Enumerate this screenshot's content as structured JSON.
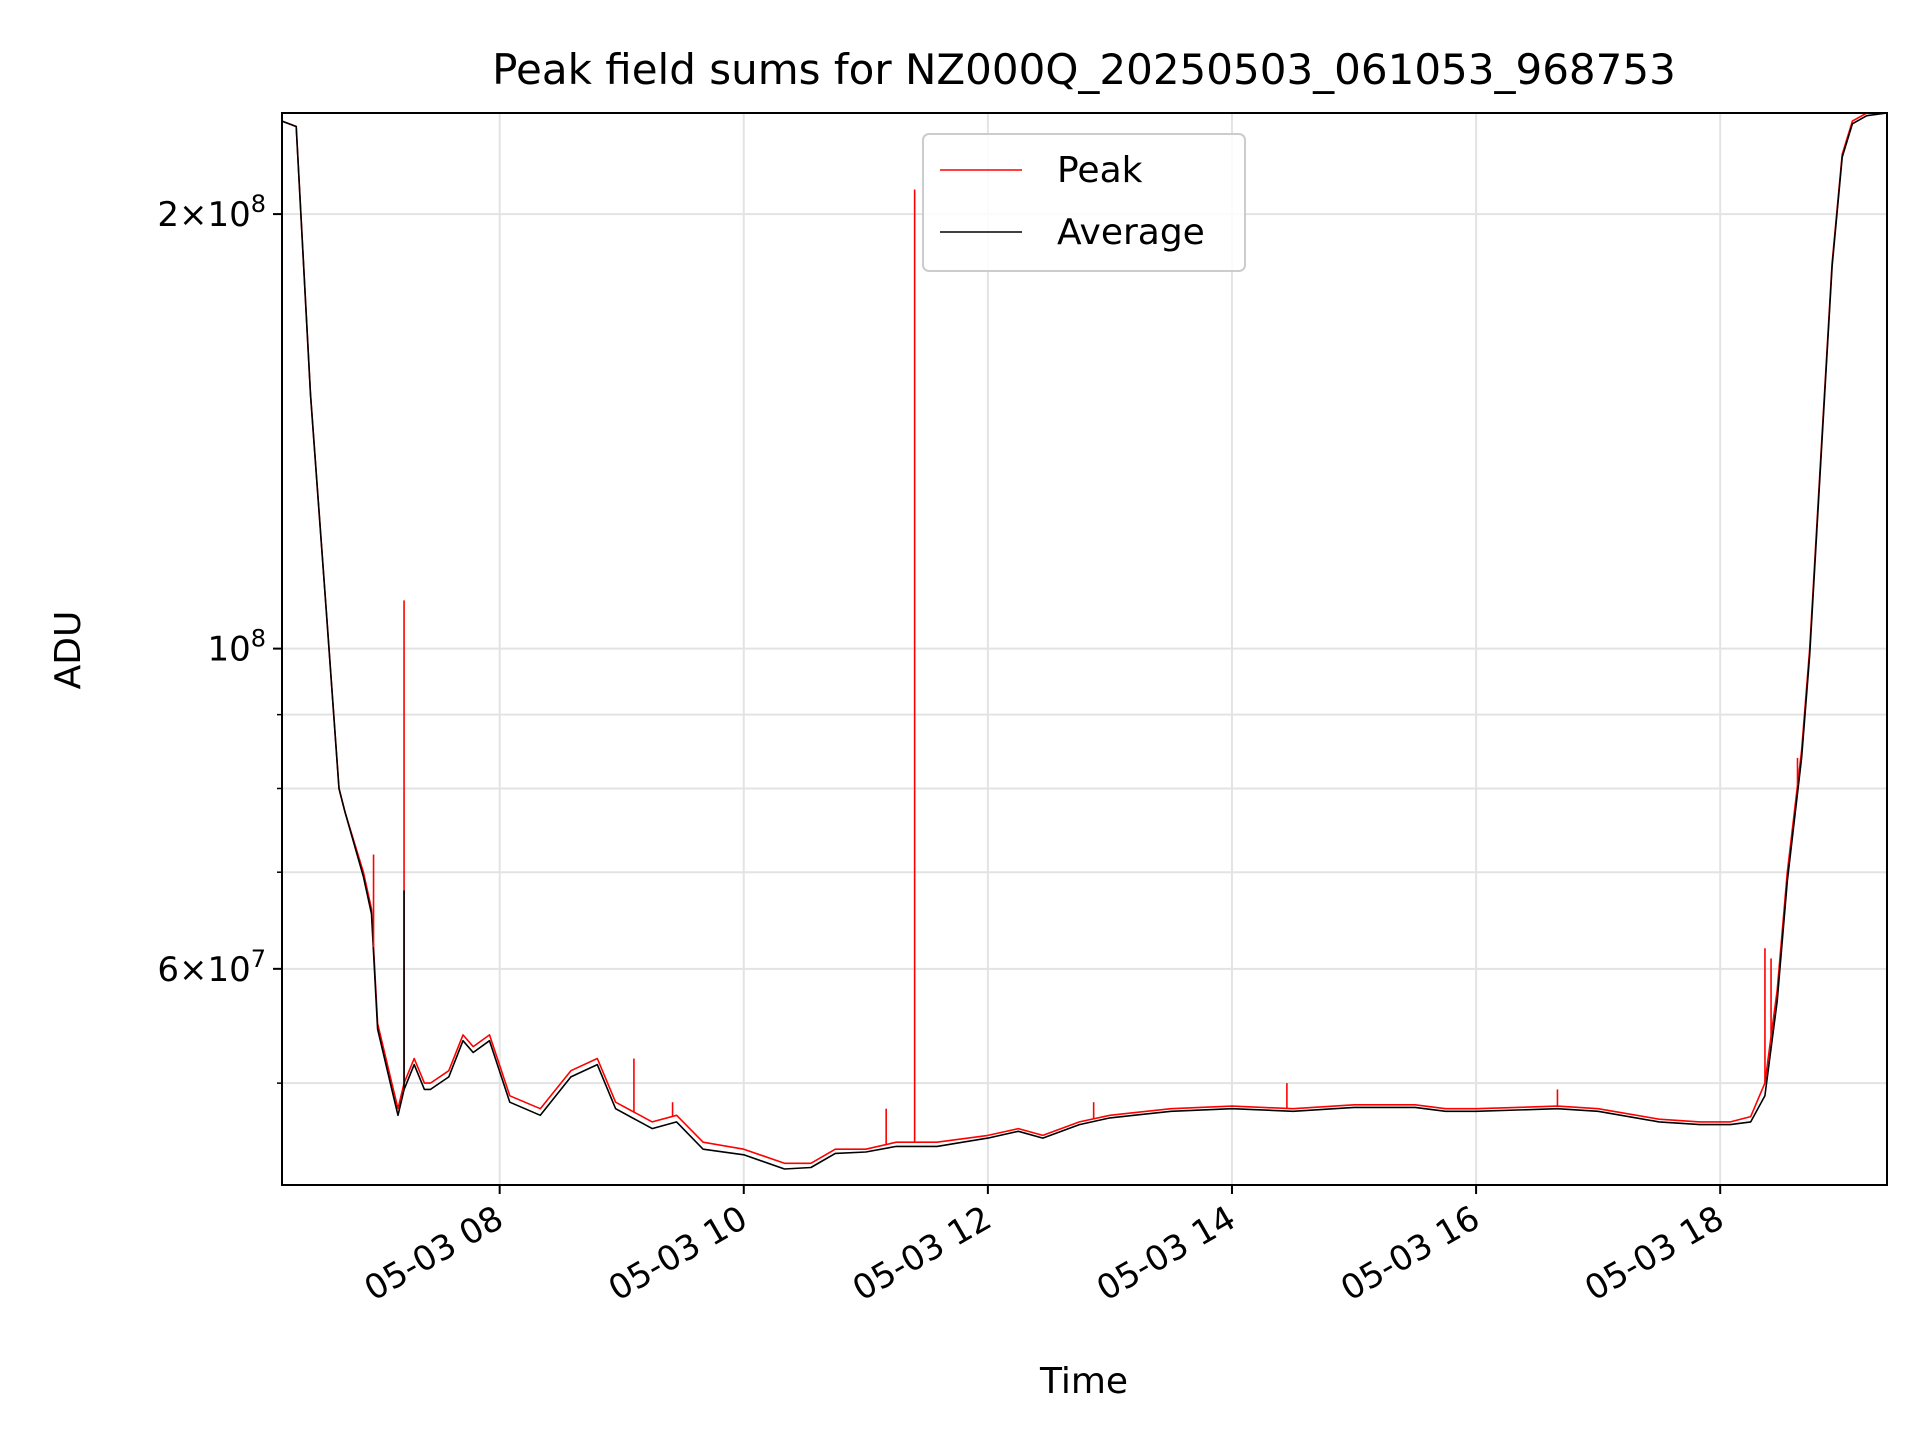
{
  "chart_data": {
    "type": "line",
    "title": "Peak field sums for NZ000Q_20250503_061053_968753",
    "xlabel": "Time",
    "ylabel": "ADU",
    "yscale": "log",
    "ylim": [
      42500000,
      235000000
    ],
    "xlim": [
      "2025-05-03 06:13",
      "2025-05-03 19:22"
    ],
    "grid": true,
    "legend_placement": "top-center",
    "x_tick_labels": [
      "05-03 08",
      "05-03 10",
      "05-03 12",
      "05-03 14",
      "05-03 16",
      "05-03 18"
    ],
    "x_tick_times": [
      "2025-05-03 08:00",
      "2025-05-03 10:00",
      "2025-05-03 12:00",
      "2025-05-03 14:00",
      "2025-05-03 16:00",
      "2025-05-03 18:00"
    ],
    "y_ticks": [
      {
        "value": 200000000,
        "base": "2×10",
        "exp": "8"
      },
      {
        "value": 100000000,
        "base": "10",
        "exp": "8"
      },
      {
        "value": 60000000,
        "base": "6×10",
        "exp": "7"
      }
    ],
    "y_minor_ticks": [
      50000000,
      70000000,
      80000000,
      90000000
    ],
    "series": [
      {
        "name": "Peak",
        "color": "#ff0000",
        "x": [
          "2025-05-03 06:13",
          "2025-05-03 06:20",
          "2025-05-03 06:27",
          "2025-05-03 06:35",
          "2025-05-03 06:41",
          "2025-05-03 06:44",
          "2025-05-03 06:53",
          "2025-05-03 06:57",
          "2025-05-03 07:00",
          "2025-05-03 07:07",
          "2025-05-03 07:10",
          "2025-05-03 07:13",
          "2025-05-03 07:18",
          "2025-05-03 07:23",
          "2025-05-03 07:26",
          "2025-05-03 07:35",
          "2025-05-03 07:42",
          "2025-05-03 07:47",
          "2025-05-03 07:55",
          "2025-05-03 08:05",
          "2025-05-03 08:20",
          "2025-05-03 08:35",
          "2025-05-03 08:48",
          "2025-05-03 08:57",
          "2025-05-03 09:15",
          "2025-05-03 09:27",
          "2025-05-03 09:40",
          "2025-05-03 10:00",
          "2025-05-03 10:20",
          "2025-05-03 10:33",
          "2025-05-03 10:45",
          "2025-05-03 11:00",
          "2025-05-03 11:15",
          "2025-05-03 11:24",
          "2025-05-03 11:35",
          "2025-05-03 12:00",
          "2025-05-03 12:15",
          "2025-05-03 12:27",
          "2025-05-03 12:45",
          "2025-05-03 13:00",
          "2025-05-03 13:30",
          "2025-05-03 14:00",
          "2025-05-03 14:30",
          "2025-05-03 15:00",
          "2025-05-03 15:30",
          "2025-05-03 15:45",
          "2025-05-03 16:00",
          "2025-05-03 16:40",
          "2025-05-03 17:00",
          "2025-05-03 17:30",
          "2025-05-03 17:50",
          "2025-05-03 18:05",
          "2025-05-03 18:15",
          "2025-05-03 18:22",
          "2025-05-03 18:28",
          "2025-05-03 18:33",
          "2025-05-03 18:40",
          "2025-05-03 18:44",
          "2025-05-03 18:50",
          "2025-05-03 18:55",
          "2025-05-03 19:00",
          "2025-05-03 19:05",
          "2025-05-03 19:12",
          "2025-05-03 19:22"
        ],
        "values": [
          232000000,
          230000000,
          150000000,
          105000000,
          80000000,
          77000000,
          70000000,
          66000000,
          55000000,
          50000000,
          48000000,
          50000000,
          52000000,
          50000000,
          50000000,
          51000000,
          54000000,
          53000000,
          54000000,
          49000000,
          48000000,
          51000000,
          52000000,
          48500000,
          47000000,
          47500000,
          45500000,
          45000000,
          44000000,
          44000000,
          45000000,
          45000000,
          45500000,
          45500000,
          45500000,
          46000000,
          46500000,
          46000000,
          47000000,
          47500000,
          48000000,
          48200000,
          48000000,
          48300000,
          48300000,
          48000000,
          48000000,
          48200000,
          48000000,
          47200000,
          47000000,
          47000000,
          47400000,
          50000000,
          58000000,
          70000000,
          85000000,
          100000000,
          140000000,
          185000000,
          220000000,
          232000000,
          235000000,
          235000000
        ]
      },
      {
        "name": "Average",
        "color": "#000000",
        "x": [
          "2025-05-03 06:13",
          "2025-05-03 06:20",
          "2025-05-03 06:27",
          "2025-05-03 06:35",
          "2025-05-03 06:41",
          "2025-05-03 06:44",
          "2025-05-03 06:53",
          "2025-05-03 06:57",
          "2025-05-03 07:00",
          "2025-05-03 07:07",
          "2025-05-03 07:10",
          "2025-05-03 07:13",
          "2025-05-03 07:18",
          "2025-05-03 07:23",
          "2025-05-03 07:26",
          "2025-05-03 07:35",
          "2025-05-03 07:42",
          "2025-05-03 07:47",
          "2025-05-03 07:55",
          "2025-05-03 08:05",
          "2025-05-03 08:20",
          "2025-05-03 08:35",
          "2025-05-03 08:48",
          "2025-05-03 08:57",
          "2025-05-03 09:15",
          "2025-05-03 09:27",
          "2025-05-03 09:40",
          "2025-05-03 10:00",
          "2025-05-03 10:20",
          "2025-05-03 10:33",
          "2025-05-03 10:45",
          "2025-05-03 11:00",
          "2025-05-03 11:15",
          "2025-05-03 11:24",
          "2025-05-03 11:35",
          "2025-05-03 12:00",
          "2025-05-03 12:15",
          "2025-05-03 12:27",
          "2025-05-03 12:45",
          "2025-05-03 13:00",
          "2025-05-03 13:30",
          "2025-05-03 14:00",
          "2025-05-03 14:30",
          "2025-05-03 15:00",
          "2025-05-03 15:30",
          "2025-05-03 15:45",
          "2025-05-03 16:00",
          "2025-05-03 16:40",
          "2025-05-03 17:00",
          "2025-05-03 17:30",
          "2025-05-03 17:50",
          "2025-05-03 18:05",
          "2025-05-03 18:15",
          "2025-05-03 18:22",
          "2025-05-03 18:28",
          "2025-05-03 18:33",
          "2025-05-03 18:40",
          "2025-05-03 18:44",
          "2025-05-03 18:50",
          "2025-05-03 18:55",
          "2025-05-03 19:00",
          "2025-05-03 19:05",
          "2025-05-03 19:12",
          "2025-05-03 19:22"
        ],
        "values": [
          232000000,
          230000000,
          150000000,
          105000000,
          80000000,
          77000000,
          69500000,
          65500000,
          54500000,
          49500000,
          47500000,
          49500000,
          51500000,
          49500000,
          49500000,
          50500000,
          53500000,
          52500000,
          53500000,
          48500000,
          47500000,
          50500000,
          51500000,
          48000000,
          46500000,
          47000000,
          45000000,
          44600000,
          43600000,
          43700000,
          44700000,
          44800000,
          45200000,
          45200000,
          45200000,
          45800000,
          46300000,
          45800000,
          46800000,
          47300000,
          47800000,
          48000000,
          47800000,
          48100000,
          48100000,
          47800000,
          47800000,
          48000000,
          47800000,
          47000000,
          46800000,
          46800000,
          47000000,
          49000000,
          57000000,
          69000000,
          84000000,
          99000000,
          139000000,
          184000000,
          219000000,
          231000000,
          234000000,
          235000000
        ]
      }
    ],
    "spikes": [
      {
        "series": "Peak",
        "x": "2025-05-03 07:13",
        "value": 108000000
      },
      {
        "series": "Peak",
        "x": "2025-05-03 06:58",
        "value": 72000000
      },
      {
        "series": "Peak",
        "x": "2025-05-03 09:06",
        "value": 52000000
      },
      {
        "series": "Peak",
        "x": "2025-05-03 09:25",
        "value": 48500000
      },
      {
        "series": "Peak",
        "x": "2025-05-03 11:24",
        "value": 208000000
      },
      {
        "series": "Peak",
        "x": "2025-05-03 11:10",
        "value": 48000000
      },
      {
        "series": "Peak",
        "x": "2025-05-03 12:52",
        "value": 48500000
      },
      {
        "series": "Peak",
        "x": "2025-05-03 14:27",
        "value": 50000000
      },
      {
        "series": "Peak",
        "x": "2025-05-03 16:40",
        "value": 49500000
      },
      {
        "series": "Peak",
        "x": "2025-05-03 18:22",
        "value": 62000000
      },
      {
        "series": "Peak",
        "x": "2025-05-03 18:25",
        "value": 61000000
      },
      {
        "series": "Peak",
        "x": "2025-05-03 18:38",
        "value": 84000000
      },
      {
        "series": "Average",
        "x": "2025-05-03 07:13",
        "value": 68000000
      }
    ]
  }
}
